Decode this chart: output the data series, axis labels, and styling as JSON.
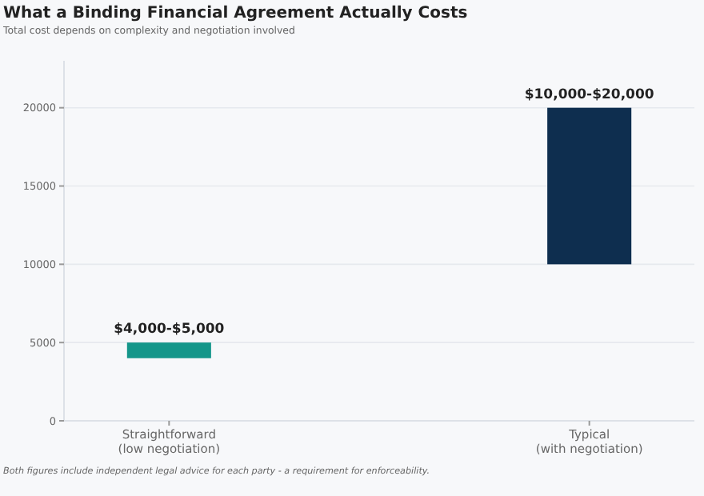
{
  "chart_data": {
    "type": "bar",
    "title": "What a Binding Financial Agreement Actually Costs",
    "subtitle": "Total cost depends on complexity and negotiation involved",
    "categories": [
      "Straightforward\n(low negotiation)",
      "Typical\n(with negotiation)"
    ],
    "base": [
      4000,
      10000
    ],
    "values": [
      1000,
      10000
    ],
    "colors": [
      "#14968a",
      "#0e2e4f"
    ],
    "value_labels": [
      "$4,000-$5,000",
      "$10,000-$20,000"
    ],
    "ylim": [
      0,
      23000
    ],
    "yticks": [
      0,
      5000,
      10000,
      15000,
      20000
    ],
    "grid": "y",
    "annotations": [
      "Both figures include independent legal advice for each party - a requirement for enforceability."
    ]
  }
}
